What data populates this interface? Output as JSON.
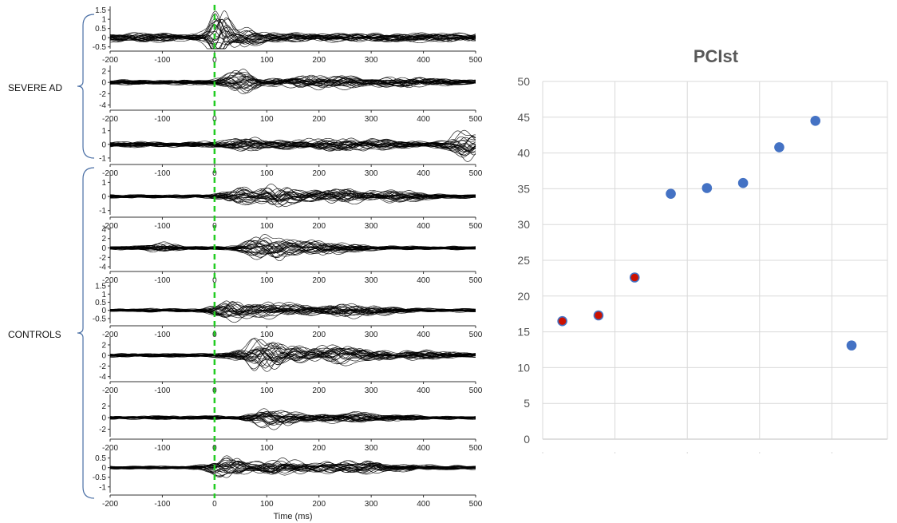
{
  "chart_data": [
    {
      "type": "line",
      "group_labels": {
        "severe": "SEVERE AD",
        "controls": "CONTROLS"
      },
      "xlabel": "Time (ms)",
      "xlim": [
        -200,
        500
      ],
      "x_ticks": [
        "-200",
        "-100",
        "0",
        "100",
        "200",
        "300",
        "400",
        "500"
      ],
      "stimulus_marker_ms": 0,
      "stimulus_marker_color": "#22cc22",
      "trace_color": "#000000",
      "panels": [
        {
          "group": "severe",
          "ylim": [
            -0.6,
            1.7
          ],
          "y_ticks": [
            "1.5",
            "1",
            "0.5",
            "0",
            "-0.5"
          ],
          "amp": 0.22,
          "bursts": [
            {
              "c": 10,
              "w": 18,
              "a": 6.0
            },
            {
              "c": 40,
              "w": 40,
              "a": 1.8
            }
          ]
        },
        {
          "group": "severe",
          "ylim": [
            -4.5,
            3
          ],
          "y_ticks": [
            "2",
            "0",
            "-2",
            "-4"
          ],
          "amp": 0.4,
          "bursts": [
            {
              "c": 45,
              "w": 30,
              "a": 4.0
            },
            {
              "c": 200,
              "w": 110,
              "a": 1.8
            },
            {
              "c": 380,
              "w": 60,
              "a": 1.3
            }
          ]
        },
        {
          "group": "severe",
          "ylim": [
            -1.3,
            1.8
          ],
          "y_ticks": [
            "1",
            "0",
            "-1"
          ],
          "amp": 0.18,
          "bursts": [
            {
              "c": 60,
              "w": 40,
              "a": 1.8
            },
            {
              "c": 250,
              "w": 120,
              "a": 1.5
            },
            {
              "c": 480,
              "w": 30,
              "a": 4.5
            }
          ]
        },
        {
          "group": "controls",
          "ylim": [
            -1.3,
            1.7
          ],
          "y_ticks": [
            "1",
            "0",
            "-1"
          ],
          "amp": 0.12,
          "bursts": [
            {
              "c": 40,
              "w": 30,
              "a": 4.0
            },
            {
              "c": 120,
              "w": 40,
              "a": 6.0
            },
            {
              "c": 230,
              "w": 60,
              "a": 3.5
            },
            {
              "c": 350,
              "w": 70,
              "a": 2.2
            }
          ]
        },
        {
          "group": "controls",
          "ylim": [
            -4.5,
            4.5
          ],
          "y_ticks": [
            "4",
            "2",
            "0",
            "-2",
            "-4"
          ],
          "amp": 0.35,
          "bursts": [
            {
              "c": 100,
              "w": 40,
              "a": 7.0
            },
            {
              "c": 200,
              "w": 70,
              "a": 3.5
            },
            {
              "c": -100,
              "w": 30,
              "a": 2.0
            }
          ]
        },
        {
          "group": "controls",
          "ylim": [
            -0.8,
            1.8
          ],
          "y_ticks": [
            "1.5",
            "1",
            "0.5",
            "0",
            "-0.5"
          ],
          "amp": 0.1,
          "bursts": [
            {
              "c": 30,
              "w": 30,
              "a": 6.0
            },
            {
              "c": 110,
              "w": 60,
              "a": 3.5
            },
            {
              "c": 260,
              "w": 80,
              "a": 3.0
            }
          ]
        },
        {
          "group": "controls",
          "ylim": [
            -4.5,
            3.5
          ],
          "y_ticks": [
            "2",
            "0",
            "-2",
            "-4"
          ],
          "amp": 0.35,
          "bursts": [
            {
              "c": 80,
              "w": 40,
              "a": 5.0
            },
            {
              "c": 120,
              "w": 40,
              "a": 5.0
            },
            {
              "c": 240,
              "w": 80,
              "a": 4.0
            },
            {
              "c": 400,
              "w": 60,
              "a": 1.5
            }
          ]
        },
        {
          "group": "controls",
          "ylim": [
            -3.3,
            4
          ],
          "y_ticks": [
            "2",
            "0",
            "-2"
          ],
          "amp": 0.3,
          "bursts": [
            {
              "c": 110,
              "w": 40,
              "a": 5.0
            },
            {
              "c": 250,
              "w": 100,
              "a": 1.8
            }
          ]
        },
        {
          "group": "controls",
          "ylim": [
            -1.3,
            0.9
          ],
          "y_ticks": [
            "0.5",
            "0",
            "-0.5",
            "-1"
          ],
          "amp": 0.08,
          "bursts": [
            {
              "c": 30,
              "w": 40,
              "a": 6.0
            },
            {
              "c": 120,
              "w": 40,
              "a": 4.0
            },
            {
              "c": 270,
              "w": 120,
              "a": 3.0
            }
          ]
        }
      ]
    },
    {
      "type": "scatter",
      "title": "PCIst",
      "ylim": [
        0,
        50
      ],
      "y_ticks": [
        "0",
        "5",
        "10",
        "15",
        "20",
        "25",
        "30",
        "35",
        "40",
        "45",
        "50"
      ],
      "x_divisions": 9,
      "points": [
        {
          "x": 1,
          "y": 16.5,
          "color": "#cc1100",
          "outline": "#4472c4"
        },
        {
          "x": 2,
          "y": 17.3,
          "color": "#cc1100",
          "outline": "#4472c4"
        },
        {
          "x": 3,
          "y": 22.6,
          "color": "#cc1100",
          "outline": "#4472c4"
        },
        {
          "x": 4,
          "y": 34.3,
          "color": "#4472c4",
          "outline": "#4472c4"
        },
        {
          "x": 5,
          "y": 35.1,
          "color": "#4472c4",
          "outline": "#4472c4"
        },
        {
          "x": 6,
          "y": 35.8,
          "color": "#4472c4",
          "outline": "#4472c4"
        },
        {
          "x": 7,
          "y": 40.8,
          "color": "#4472c4",
          "outline": "#4472c4"
        },
        {
          "x": 8,
          "y": 44.5,
          "color": "#4472c4",
          "outline": "#4472c4"
        },
        {
          "x": 9,
          "y": 13.1,
          "color": "#4472c4",
          "outline": "#4472c4"
        }
      ]
    }
  ]
}
